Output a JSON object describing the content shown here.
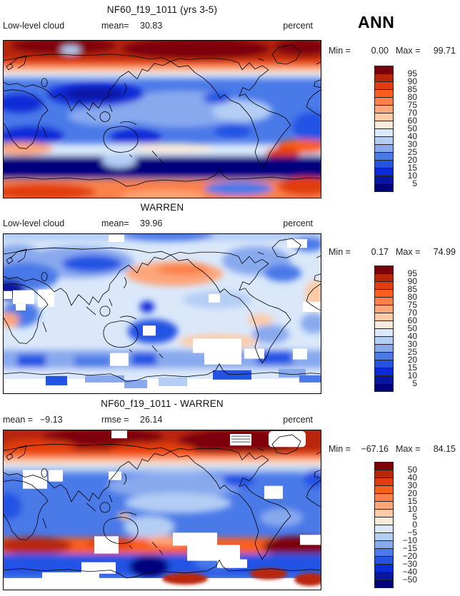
{
  "season": "ANN",
  "panels": [
    {
      "title": "NF60_f19_1011 (yrs 3-5)",
      "sub_left_label": "Low-level cloud",
      "sub_left_value": "",
      "sub_mid_label": "mean=",
      "sub_mid_value": "30.83",
      "units": "percent",
      "min_label": "Min =",
      "min_value": "0.00",
      "max_label": "Max =",
      "max_value": "99.71",
      "colorbar_labels": [
        "95",
        "90",
        "85",
        "80",
        "75",
        "70",
        "60",
        "50",
        "40",
        "30",
        "25",
        "20",
        "15",
        "10",
        "5"
      ],
      "colorbar_colors": [
        "#7E0008",
        "#B82508",
        "#E23D11",
        "#FA5E1F",
        "#FC8049",
        "#FDA67A",
        "#FECBA6",
        "#F9EAD9",
        "#DAE8FA",
        "#B4CDF4",
        "#88A9EE",
        "#4A79E8",
        "#2453E4",
        "#0A2BD8",
        "#0817A2",
        "#00007E"
      ]
    },
    {
      "title": "WARREN",
      "sub_left_label": "Low-level cloud",
      "sub_left_value": "",
      "sub_mid_label": "mean=",
      "sub_mid_value": "39.96",
      "units": "percent",
      "min_label": "Min =",
      "min_value": "0.17",
      "max_label": "Max =",
      "max_value": "74.99",
      "colorbar_labels": [
        "95",
        "90",
        "85",
        "80",
        "75",
        "70",
        "60",
        "50",
        "40",
        "30",
        "25",
        "20",
        "15",
        "10",
        "5"
      ],
      "colorbar_colors": [
        "#7E0008",
        "#B82508",
        "#E23D11",
        "#FA5E1F",
        "#FC8049",
        "#FDA67A",
        "#FECBA6",
        "#F9EAD9",
        "#DAE8FA",
        "#B4CDF4",
        "#88A9EE",
        "#4A79E8",
        "#2453E4",
        "#0A2BD8",
        "#0817A2",
        "#00007E"
      ]
    },
    {
      "title": "NF60_f19_1011 - WARREN",
      "sub_left_label": "mean =",
      "sub_left_value": "−9.13",
      "sub_mid_label": "rmse =",
      "sub_mid_value": "26.14",
      "units": "percent",
      "min_label": "Min =",
      "min_value": "−67.16",
      "max_label": "Max =",
      "max_value": "84.15",
      "colorbar_labels": [
        "50",
        "40",
        "30",
        "20",
        "15",
        "10",
        "5",
        "0",
        "−5",
        "−10",
        "−15",
        "−20",
        "−30",
        "−40",
        "−50"
      ],
      "colorbar_colors": [
        "#7E0008",
        "#B82508",
        "#E23D11",
        "#FA5E1F",
        "#FC8049",
        "#FDA67A",
        "#FECBA6",
        "#F9EAD9",
        "#DAE8FA",
        "#B4CDF4",
        "#88A9EE",
        "#4A79E8",
        "#2453E4",
        "#0A2BD8",
        "#0817A2",
        "#00007E"
      ]
    }
  ],
  "chart_data": [
    {
      "type": "heatmap",
      "subtype": "filled-contour global map",
      "title": "NF60_f19_1011 (yrs 3-5)",
      "variable": "Low-level cloud",
      "season": "ANN",
      "units": "percent",
      "mean": 30.83,
      "min": 0.0,
      "max": 99.71,
      "contour_levels": [
        5,
        10,
        15,
        20,
        25,
        30,
        40,
        50,
        60,
        70,
        75,
        80,
        85,
        90,
        95
      ],
      "palette_high_to_low": [
        "#7E0008",
        "#B82508",
        "#E23D11",
        "#FA5E1F",
        "#FC8049",
        "#FDA67A",
        "#FECBA6",
        "#F9EAD9",
        "#DAE8FA",
        "#B4CDF4",
        "#88A9EE",
        "#4A79E8",
        "#2453E4",
        "#0A2BD8",
        "#0817A2",
        "#00007E"
      ],
      "projection": "cylindrical equidistant, 0-360E Pacific-centered, 90N top",
      "legend_position": "right",
      "pattern_notes": "High cloud (red, >70%) across Arctic and along ~60S/Antarctic coast; low cloud (blue, <30%) over subtropics, central Asia, Australia, southern Africa; very low (<5%) band over Southern Ocean ~60-70S"
    },
    {
      "type": "heatmap",
      "subtype": "filled-contour global map with missing-data blocks",
      "title": "WARREN",
      "variable": "Low-level cloud",
      "season": "ANN",
      "units": "percent",
      "mean": 39.96,
      "min": 0.17,
      "max": 74.99,
      "contour_levels": [
        5,
        10,
        15,
        20,
        25,
        30,
        40,
        50,
        60,
        70,
        75,
        80,
        85,
        90,
        95
      ],
      "palette_high_to_low": [
        "#7E0008",
        "#B82508",
        "#E23D11",
        "#FA5E1F",
        "#FC8049",
        "#FDA67A",
        "#FECBA6",
        "#F9EAD9",
        "#DAE8FA",
        "#B4CDF4",
        "#88A9EE",
        "#4A79E8",
        "#2453E4",
        "#0A2BD8",
        "#0817A2",
        "#00007E"
      ],
      "projection": "cylindrical equidistant, 0-360E Pacific-centered, 90N top",
      "legend_position": "right",
      "pattern_notes": "Mostly 30-50% (light blue); >50% (salmon) over North Pacific and SE Pacific; <30% (blue) over Siberia, Australia, Africa; white blocky missing data over Middle East, Southern Ocean and Antarctica"
    },
    {
      "type": "heatmap",
      "subtype": "filled-contour global difference map with missing-data blocks",
      "title": "NF60_f19_1011 - WARREN",
      "variable": "Low-level cloud difference",
      "season": "ANN",
      "units": "percent",
      "mean": -9.13,
      "rmse": 26.14,
      "min": -67.16,
      "max": 84.15,
      "contour_levels": [
        -50,
        -40,
        -30,
        -20,
        -15,
        -10,
        -5,
        0,
        5,
        10,
        15,
        20,
        30,
        40,
        50
      ],
      "palette_high_to_low": [
        "#7E0008",
        "#B82508",
        "#E23D11",
        "#FA5E1F",
        "#FC8049",
        "#FDA67A",
        "#FECBA6",
        "#F9EAD9",
        "#DAE8FA",
        "#B4CDF4",
        "#88A9EE",
        "#4A79E8",
        "#2453E4",
        "#0A2BD8",
        "#0817A2",
        "#00007E"
      ],
      "projection": "cylindrical equidistant, 0-360E Pacific-centered, 90N top",
      "legend_position": "right",
      "pattern_notes": "Model too cloudy (red, >+20) over Arctic and ~50-60S band; too little cloud (blue, -10 to -30) through mid-latitudes and tropics; white missing blocks over Middle East, Southern Ocean, Antarctica"
    }
  ]
}
